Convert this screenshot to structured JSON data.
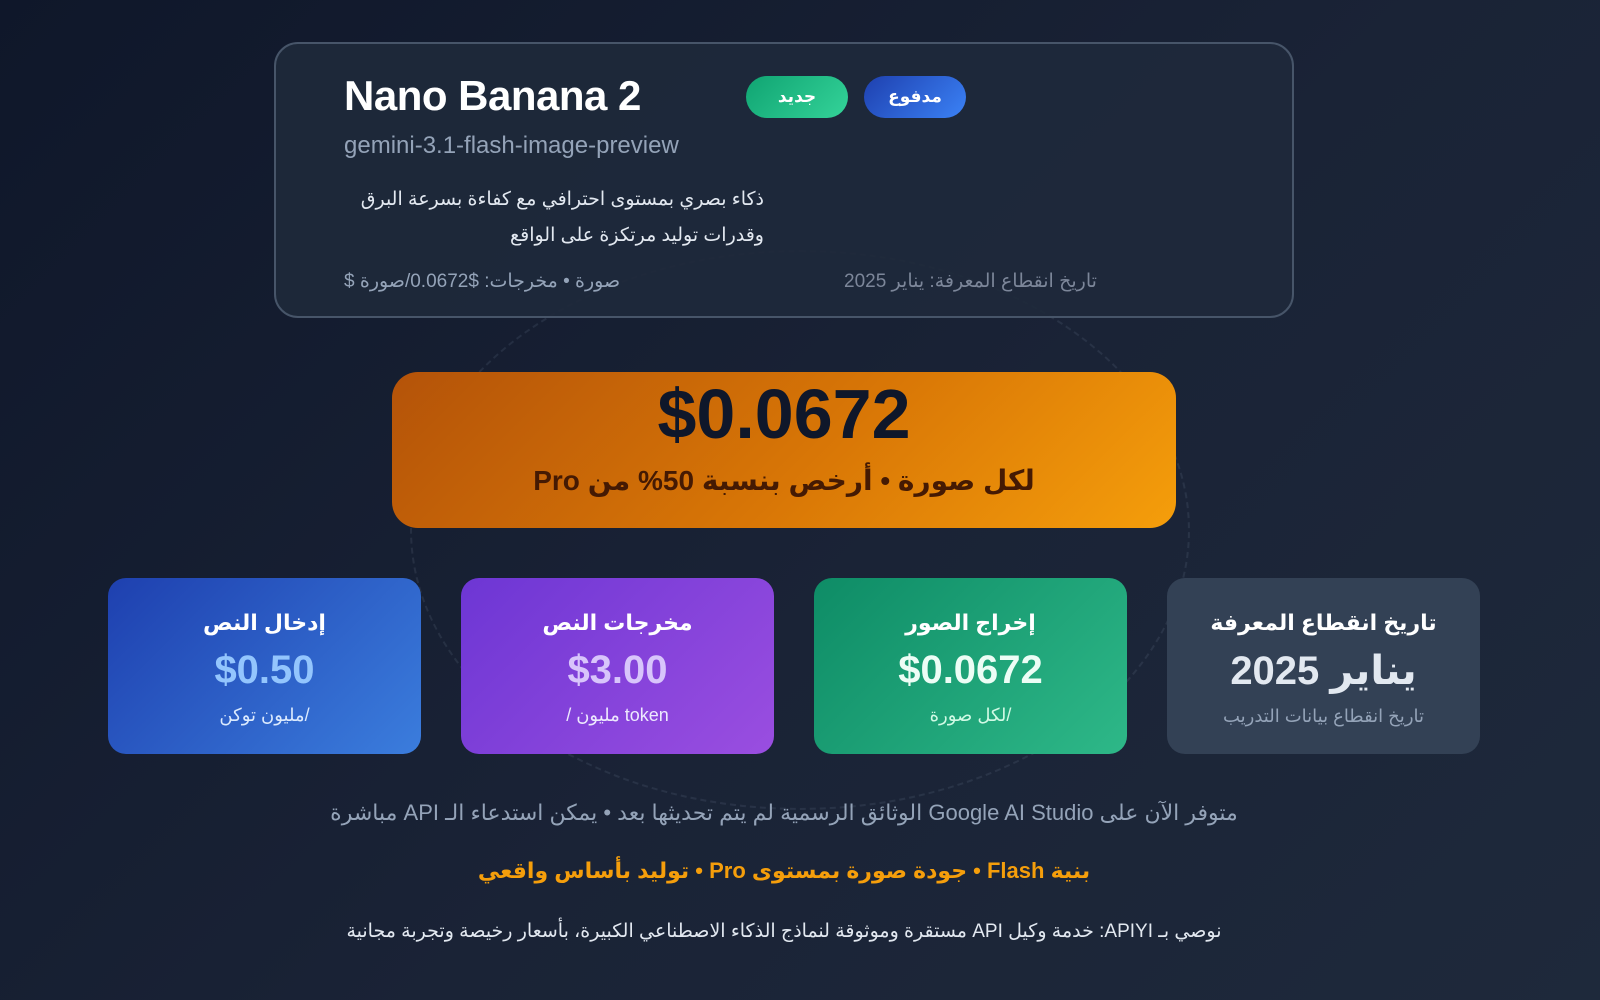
{
  "header": {
    "title": "Nano Banana 2",
    "badges": {
      "new": "جديد",
      "paid": "مدفوع"
    },
    "model_id": "gemini-3.1-flash-image-preview",
    "description": "ذكاء بصري بمستوى احترافي مع كفاءة بسرعة البرق وقدرات توليد مرتكزة على الواقع",
    "pricing_meta": "$ صورة • مخرجات: $0.0672/صورة",
    "cutoff_meta": "تاريخ انقطاع المعرفة: يناير 2025"
  },
  "price": {
    "value": "$0.0672",
    "subtitle": "Pro لكل صورة • أرخص بنسبة 50% من"
  },
  "stats": [
    {
      "label": "إدخال النص",
      "value": "$0.50",
      "sub": "مليون توكن/"
    },
    {
      "label": "مخرجات النص",
      "value": "$3.00",
      "sub": "/ مليون token"
    },
    {
      "label": "إخراج الصور",
      "value": "$0.0672",
      "sub": "لكل صورة/"
    },
    {
      "label": "تاريخ انقطاع المعرفة",
      "value": "يناير 2025",
      "sub": "تاريخ انقطاع بيانات التدريب"
    }
  ],
  "notes": {
    "availability": "مباشرة API الوثائق الرسمية لم يتم تحديثها بعد • يمكن استدعاء الـ Google AI Studio متوفر الآن على",
    "features": "توليد بأساس واقعي • Pro جودة صورة بمستوى • Flash بنية",
    "recommendation": "مستقرة وموثوقة لنماذج الذكاء الاصطناعي الكبيرة، بأسعار رخيصة وتجربة مجانية API خدمة وكيل :APIYI نوصي بـ"
  },
  "colors": {
    "accent": "#f59e0b",
    "background": "#0f172a",
    "card": "#1e293b"
  }
}
